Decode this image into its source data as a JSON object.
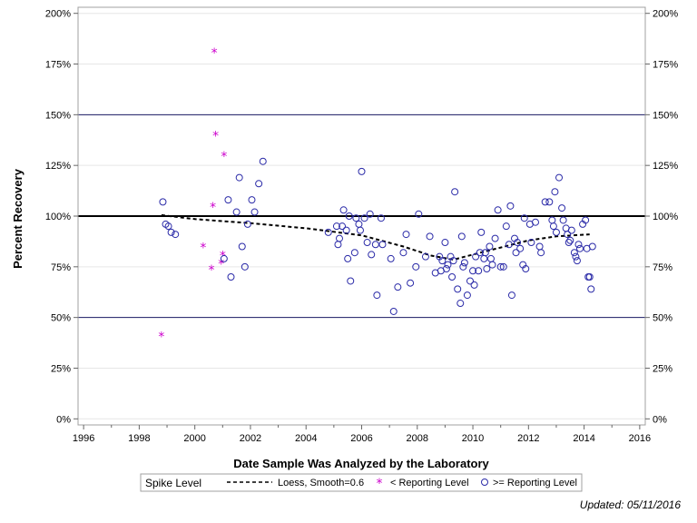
{
  "chart_data": {
    "type": "scatter",
    "title": "",
    "xlabel": "Date Sample Was Analyzed by the Laboratory",
    "ylabel": "Percent Recovery",
    "xlim": [
      1995.8,
      2016.2
    ],
    "ylim": [
      -3,
      203
    ],
    "x_ticks": [
      1996,
      1998,
      2000,
      2002,
      2004,
      2006,
      2008,
      2010,
      2012,
      2014,
      2016
    ],
    "y_ticks": [
      0,
      25,
      50,
      75,
      100,
      125,
      150,
      175,
      200
    ],
    "y_tick_labels": [
      "0%",
      "25%",
      "50%",
      "75%",
      "100%",
      "125%",
      "150%",
      "175%",
      "200%"
    ],
    "reference_lines": [
      {
        "y": 100,
        "style": "heavy"
      },
      {
        "y": 50,
        "style": "thin"
      },
      {
        "y": 150,
        "style": "thin"
      }
    ],
    "grid": true,
    "colors": {
      "circle": "#2b2ba8",
      "star": "#cc00cc",
      "refline": "#000000",
      "thinline": "#1a1a66",
      "grid": "#e6e6e6"
    },
    "legend": {
      "placement": "bottom-center",
      "heading": "Spike Level",
      "entries": [
        {
          "label": "Loess, Smooth=0.6",
          "symbol": "dashed-line"
        },
        {
          "label": "< Reporting Level",
          "symbol": "star"
        },
        {
          "label": ">= Reporting Level",
          "symbol": "circle"
        }
      ]
    },
    "series": [
      {
        "name": "< Reporting Level",
        "symbol": "star",
        "points": [
          [
            1998.8,
            41
          ],
          [
            2000.3,
            85
          ],
          [
            2000.6,
            74
          ],
          [
            2000.65,
            105
          ],
          [
            2000.7,
            181
          ],
          [
            2000.75,
            140
          ],
          [
            2000.95,
            77
          ],
          [
            2001.0,
            81
          ],
          [
            2001.05,
            130
          ]
        ]
      },
      {
        "name": ">= Reporting Level",
        "symbol": "circle",
        "points": [
          [
            1998.85,
            107
          ],
          [
            1998.95,
            96
          ],
          [
            1999.05,
            95
          ],
          [
            1999.15,
            92
          ],
          [
            1999.3,
            91
          ],
          [
            2001.05,
            79
          ],
          [
            2001.2,
            108
          ],
          [
            2001.3,
            70
          ],
          [
            2001.5,
            102
          ],
          [
            2001.6,
            119
          ],
          [
            2001.7,
            85
          ],
          [
            2001.8,
            75
          ],
          [
            2001.9,
            96
          ],
          [
            2002.05,
            108
          ],
          [
            2002.15,
            102
          ],
          [
            2002.3,
            116
          ],
          [
            2002.45,
            127
          ],
          [
            2004.8,
            92
          ],
          [
            2005.1,
            95
          ],
          [
            2005.15,
            86
          ],
          [
            2005.2,
            89
          ],
          [
            2005.3,
            95
          ],
          [
            2005.35,
            103
          ],
          [
            2005.45,
            93
          ],
          [
            2005.5,
            79
          ],
          [
            2005.55,
            100
          ],
          [
            2005.6,
            68
          ],
          [
            2005.75,
            82
          ],
          [
            2005.8,
            99
          ],
          [
            2005.9,
            96
          ],
          [
            2005.95,
            93
          ],
          [
            2006.0,
            122
          ],
          [
            2006.1,
            99
          ],
          [
            2006.2,
            87
          ],
          [
            2006.3,
            101
          ],
          [
            2006.35,
            81
          ],
          [
            2006.5,
            86
          ],
          [
            2006.55,
            61
          ],
          [
            2006.7,
            99
          ],
          [
            2006.75,
            86
          ],
          [
            2007.05,
            79
          ],
          [
            2007.15,
            53
          ],
          [
            2007.3,
            65
          ],
          [
            2007.5,
            82
          ],
          [
            2007.6,
            91
          ],
          [
            2007.75,
            67
          ],
          [
            2007.95,
            75
          ],
          [
            2008.05,
            101
          ],
          [
            2008.3,
            80
          ],
          [
            2008.45,
            90
          ],
          [
            2008.65,
            72
          ],
          [
            2008.8,
            80
          ],
          [
            2008.85,
            73
          ],
          [
            2008.9,
            78
          ],
          [
            2009.0,
            87
          ],
          [
            2009.05,
            74
          ],
          [
            2009.1,
            76
          ],
          [
            2009.2,
            80
          ],
          [
            2009.25,
            70
          ],
          [
            2009.3,
            78
          ],
          [
            2009.35,
            112
          ],
          [
            2009.45,
            64
          ],
          [
            2009.55,
            57
          ],
          [
            2009.6,
            90
          ],
          [
            2009.65,
            75
          ],
          [
            2009.7,
            77
          ],
          [
            2009.8,
            61
          ],
          [
            2009.9,
            68
          ],
          [
            2010.0,
            73
          ],
          [
            2010.05,
            66
          ],
          [
            2010.1,
            80
          ],
          [
            2010.2,
            73
          ],
          [
            2010.25,
            82
          ],
          [
            2010.3,
            92
          ],
          [
            2010.4,
            79
          ],
          [
            2010.45,
            82
          ],
          [
            2010.5,
            74
          ],
          [
            2010.6,
            85
          ],
          [
            2010.65,
            79
          ],
          [
            2010.7,
            76
          ],
          [
            2010.8,
            89
          ],
          [
            2010.9,
            103
          ],
          [
            2011.0,
            75
          ],
          [
            2011.1,
            75
          ],
          [
            2011.2,
            95
          ],
          [
            2011.3,
            86
          ],
          [
            2011.35,
            105
          ],
          [
            2011.4,
            61
          ],
          [
            2011.5,
            89
          ],
          [
            2011.55,
            82
          ],
          [
            2011.6,
            87
          ],
          [
            2011.7,
            84
          ],
          [
            2011.8,
            76
          ],
          [
            2011.85,
            99
          ],
          [
            2011.9,
            74
          ],
          [
            2012.05,
            96
          ],
          [
            2012.1,
            87
          ],
          [
            2012.25,
            97
          ],
          [
            2012.4,
            85
          ],
          [
            2012.45,
            82
          ],
          [
            2012.6,
            107
          ],
          [
            2012.75,
            107
          ],
          [
            2012.85,
            98
          ],
          [
            2012.9,
            95
          ],
          [
            2012.95,
            112
          ],
          [
            2013.0,
            92
          ],
          [
            2013.1,
            119
          ],
          [
            2013.2,
            104
          ],
          [
            2013.25,
            98
          ],
          [
            2013.35,
            94
          ],
          [
            2013.4,
            91
          ],
          [
            2013.45,
            87
          ],
          [
            2013.5,
            88
          ],
          [
            2013.55,
            93
          ],
          [
            2013.65,
            82
          ],
          [
            2013.7,
            80
          ],
          [
            2013.75,
            78
          ],
          [
            2013.8,
            86
          ],
          [
            2013.85,
            84
          ],
          [
            2013.95,
            96
          ],
          [
            2014.05,
            98
          ],
          [
            2014.1,
            84
          ],
          [
            2014.15,
            70
          ],
          [
            2014.2,
            70
          ],
          [
            2014.25,
            64
          ],
          [
            2014.3,
            85
          ]
        ]
      },
      {
        "name": "Loess, Smooth=0.6",
        "symbol": "dashed-line",
        "points": [
          [
            1998.8,
            100.5
          ],
          [
            2000,
            98.5
          ],
          [
            2002,
            96.5
          ],
          [
            2004,
            94
          ],
          [
            2006,
            90.5
          ],
          [
            2007.5,
            85
          ],
          [
            2008.5,
            80.5
          ],
          [
            2009.3,
            78.5
          ],
          [
            2010,
            81
          ],
          [
            2011,
            84.5
          ],
          [
            2012,
            88
          ],
          [
            2013,
            90
          ],
          [
            2014.2,
            91
          ]
        ]
      }
    ]
  },
  "footer": {
    "updated": "Updated: 05/11/2016"
  }
}
